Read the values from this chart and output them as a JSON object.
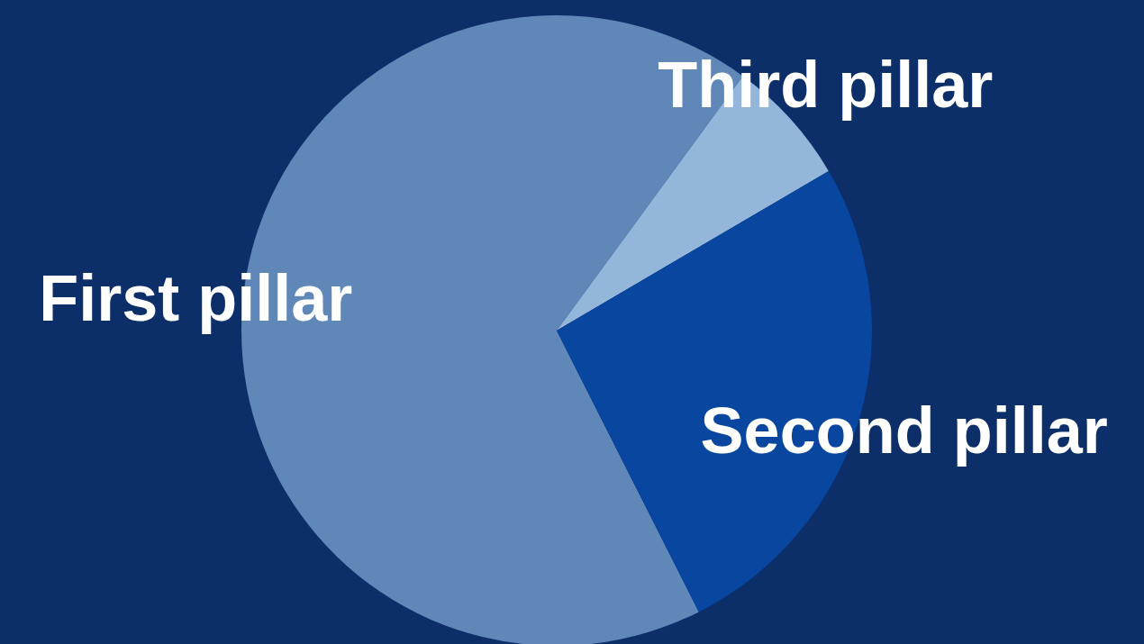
{
  "chart_data": {
    "type": "pie",
    "categories": [
      "First pillar",
      "Third pillar",
      "Second pillar"
    ],
    "values": [
      67.5,
      6.5,
      26
    ],
    "colors": [
      "#5f87b7",
      "#93b6da",
      "#0846a0"
    ]
  }
}
